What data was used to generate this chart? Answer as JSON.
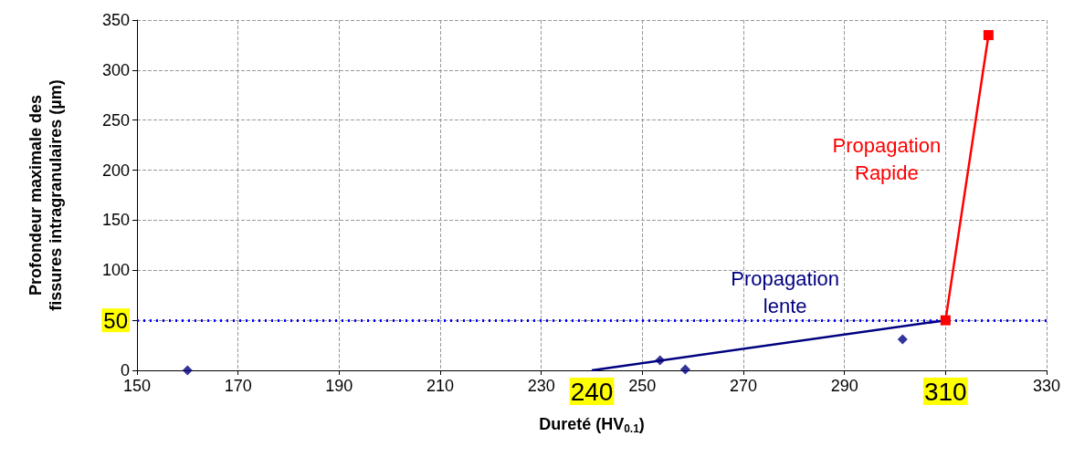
{
  "chart_data": {
    "type": "scatter",
    "xlabel": "Dureté (HV$_{0.1}$)",
    "ylabel": "Profondeur maximale des\nfissures intragranulaires (µm)",
    "series": [
      {
        "color": "#000080",
        "marker": "diamond",
        "x": [
          160,
          253.5,
          258.5,
          301.5
        ],
        "values": [
          0,
          10,
          1,
          31
        ]
      },
      {
        "type": "line",
        "color": "#000080",
        "marker": "none",
        "x": [
          240,
          310
        ],
        "values": [
          0,
          50
        ]
      },
      {
        "type": "line",
        "color": "#ff0000",
        "marker": "square",
        "x": [
          310,
          318.5
        ],
        "values": [
          50,
          335
        ]
      }
    ],
    "xlim": [
      150,
      330
    ],
    "xticks": [
      150,
      170,
      190,
      210,
      230,
      250,
      270,
      290,
      {
        "value": 310,
        "label": null
      },
      330
    ],
    "ylim": [
      0,
      350
    ],
    "yticks": [
      0,
      {
        "value": 50,
        "label": null
      },
      100,
      150,
      200,
      250,
      300,
      350
    ],
    "ref_lines": [
      {
        "axis": "y",
        "value": 50,
        "label": "50",
        "color": "#0000ff",
        "line_style": "dotted"
      }
    ],
    "annotations": [
      "240",
      "310",
      "Propagation\nlente",
      "Propagation\nRapide"
    ],
    "grid": true
  }
}
